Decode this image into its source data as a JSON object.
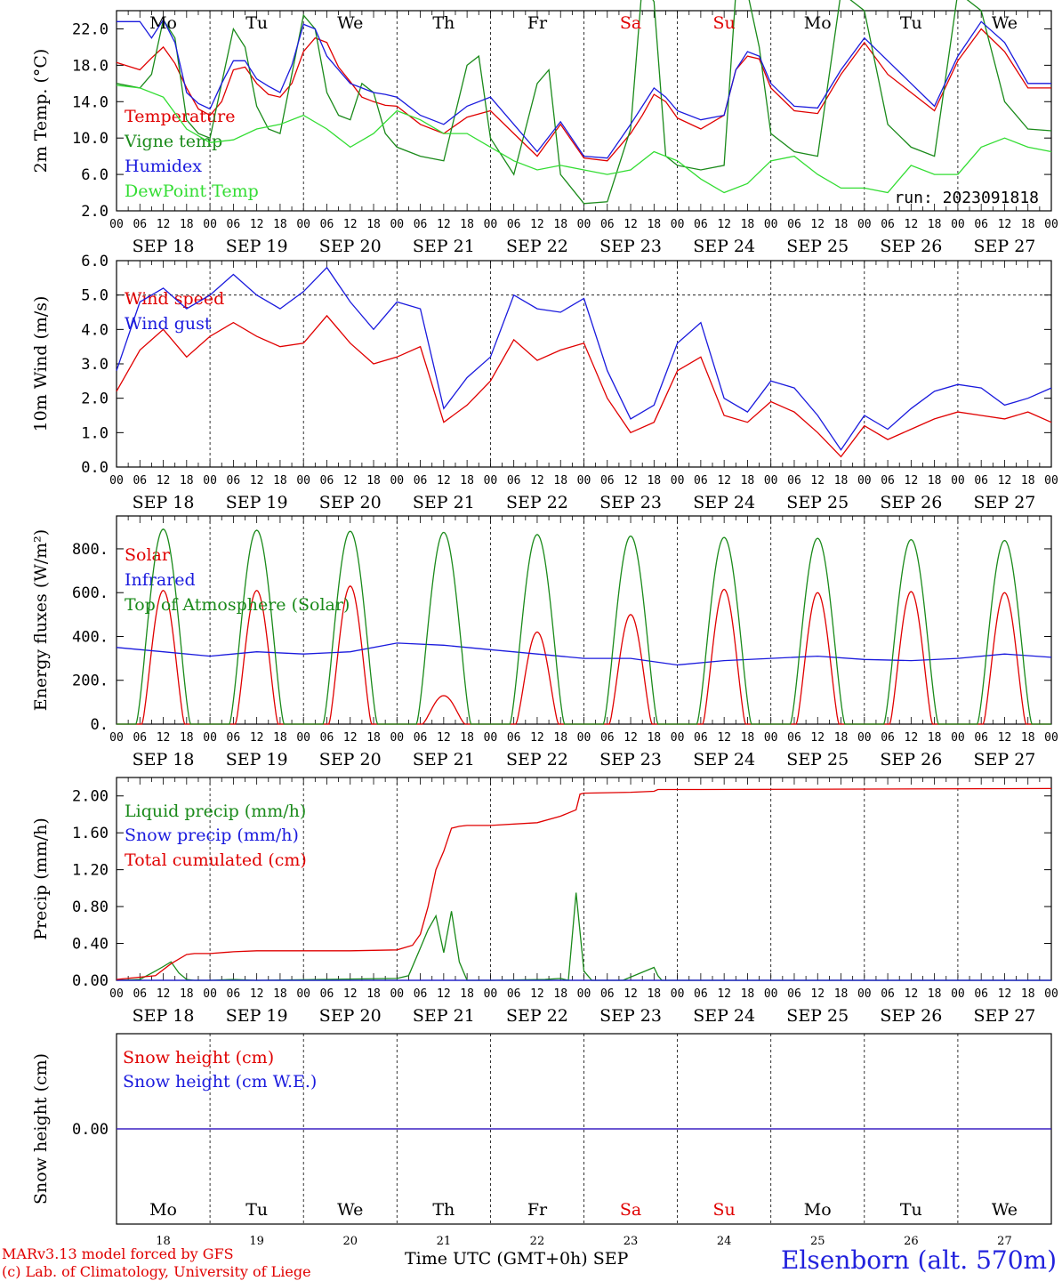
{
  "station_label": "Elsenborn (alt. 570m)",
  "credit_line_1": "MARv3.13 model forced by GFS",
  "credit_line_2": "(c) Lab. of Climatology, University of Liege",
  "time_axis_label": "Time UTC (GMT+0h)",
  "month_label": "SEP",
  "hour_ticks": [
    "00",
    "06",
    "12",
    "18"
  ],
  "date_labels": [
    "SEP 18",
    "SEP 19",
    "SEP 20",
    "SEP 21",
    "SEP 22",
    "SEP 23",
    "SEP 24",
    "SEP 25",
    "SEP 26",
    "SEP 27"
  ],
  "day_numbers": [
    "18",
    "19",
    "20",
    "21",
    "22",
    "23",
    "24",
    "25",
    "26",
    "27"
  ],
  "weekdays": [
    {
      "label": "Mo",
      "color": "#000000"
    },
    {
      "label": "Tu",
      "color": "#000000"
    },
    {
      "label": "We",
      "color": "#000000"
    },
    {
      "label": "Th",
      "color": "#000000"
    },
    {
      "label": "Fr",
      "color": "#000000"
    },
    {
      "label": "Sa",
      "color": "#e00000"
    },
    {
      "label": "Su",
      "color": "#e00000"
    },
    {
      "label": "Mo",
      "color": "#000000"
    },
    {
      "label": "Tu",
      "color": "#000000"
    },
    {
      "label": "We",
      "color": "#000000"
    }
  ],
  "colors": {
    "red": "#e00000",
    "green": "#1a8a1a",
    "blue": "#1a1add",
    "lightgreen": "#33dd33",
    "purple": "#8833aa"
  },
  "chart_data": [
    {
      "type": "line",
      "ylabel": "2m Temp. (°C)",
      "ylim": [
        2,
        24
      ],
      "yticks": [
        "22.0",
        "18.0",
        "14.0",
        "10.0",
        "6.0",
        "2.0"
      ],
      "ytick_values": [
        22,
        18,
        14,
        10,
        6,
        2
      ],
      "run_label": "run: 2023091818",
      "x_unit": "hours since 2023-09-18 00 UTC",
      "series": [
        {
          "name": "Temperature",
          "color_key": "red",
          "x": [
            0,
            6,
            9,
            12,
            15,
            18,
            21,
            24,
            27,
            30,
            33,
            36,
            39,
            42,
            45,
            48,
            51,
            54,
            57,
            60,
            63,
            66,
            69,
            72,
            78,
            84,
            90,
            96,
            102,
            108,
            114,
            120,
            126,
            132,
            135,
            138,
            141,
            144,
            150,
            156,
            159,
            162,
            165,
            168,
            174,
            180,
            186,
            192,
            198,
            204,
            210,
            216,
            222,
            228,
            234,
            240
          ],
          "y": [
            18.3,
            17.5,
            18.8,
            20,
            18.2,
            15.5,
            13.2,
            12.5,
            14,
            17.5,
            17.8,
            16,
            14.8,
            14.5,
            16,
            19.5,
            21,
            20.5,
            17.8,
            16.2,
            14.5,
            14,
            13.6,
            13.5,
            11.5,
            10.5,
            12.3,
            13,
            10.5,
            8,
            11.5,
            7.8,
            7.5,
            10.5,
            12.5,
            14.8,
            14,
            12.2,
            11,
            12.5,
            17.5,
            19,
            18.7,
            15.5,
            13,
            12.7,
            17,
            20.5,
            17,
            15,
            13,
            18.5,
            22,
            19.5,
            15.5,
            15.5
          ]
        },
        {
          "name": "Vigne temp",
          "color_key": "green",
          "x": [
            0,
            6,
            9,
            12,
            15,
            18,
            21,
            24,
            27,
            30,
            33,
            36,
            39,
            42,
            45,
            48,
            51,
            54,
            57,
            60,
            63,
            66,
            69,
            72,
            78,
            84,
            90,
            93,
            96,
            102,
            108,
            111,
            114,
            120,
            126,
            132,
            135,
            138,
            141,
            144,
            150,
            156,
            159,
            162,
            165,
            168,
            174,
            180,
            186,
            192,
            198,
            204,
            210,
            216,
            222,
            228,
            234,
            240
          ],
          "y": [
            16,
            15.5,
            17,
            23,
            21,
            12,
            10.5,
            10,
            16,
            22,
            20,
            13.5,
            11,
            10.5,
            17,
            23.5,
            22,
            15,
            12.5,
            12,
            16,
            15,
            10.5,
            9,
            8,
            7.5,
            18,
            19,
            10,
            6,
            16,
            17.5,
            6,
            2.8,
            3,
            11,
            27,
            25,
            8,
            7,
            6.5,
            7,
            26,
            26,
            20,
            10.5,
            8.5,
            8,
            26,
            24,
            11.5,
            9,
            8,
            26,
            24,
            14,
            11,
            10.8
          ]
        },
        {
          "name": "Humidex",
          "color_key": "blue",
          "x": [
            0,
            6,
            9,
            12,
            15,
            18,
            21,
            24,
            27,
            30,
            33,
            36,
            39,
            42,
            45,
            48,
            51,
            54,
            57,
            60,
            63,
            66,
            69,
            72,
            78,
            84,
            90,
            96,
            102,
            108,
            114,
            120,
            126,
            132,
            135,
            138,
            141,
            144,
            150,
            156,
            159,
            162,
            165,
            168,
            174,
            180,
            186,
            192,
            198,
            204,
            210,
            216,
            222,
            228,
            234,
            240
          ],
          "y": [
            22.8,
            22.8,
            21,
            23,
            20.5,
            15,
            13.8,
            13.2,
            16,
            18.5,
            18.5,
            16.5,
            15.7,
            15,
            18,
            22.5,
            22,
            19,
            17.5,
            16,
            15.5,
            15,
            14.8,
            14.5,
            12.5,
            11.5,
            13.5,
            14.5,
            11.5,
            8.5,
            11.8,
            8,
            7.8,
            11.5,
            13.5,
            15.5,
            14.5,
            13,
            12,
            12.5,
            17.5,
            19.5,
            19,
            16,
            13.5,
            13.3,
            17.5,
            21,
            18.5,
            16,
            13.5,
            19,
            22.8,
            20.5,
            16,
            16
          ]
        },
        {
          "name": "DewPoint Temp",
          "color_key": "lightgreen",
          "x": [
            0,
            6,
            12,
            18,
            24,
            30,
            36,
            42,
            48,
            54,
            60,
            66,
            72,
            78,
            84,
            90,
            96,
            102,
            108,
            114,
            120,
            126,
            132,
            138,
            144,
            150,
            156,
            162,
            168,
            174,
            180,
            186,
            192,
            198,
            204,
            210,
            216,
            222,
            228,
            234,
            240
          ],
          "y": [
            15.8,
            15.5,
            14.5,
            11,
            9.5,
            9.8,
            11,
            11.5,
            12.5,
            11,
            9,
            10.5,
            13,
            12,
            10.5,
            10.5,
            9,
            7.5,
            6.5,
            7,
            6.5,
            6,
            6.5,
            8.5,
            7.5,
            5.5,
            4,
            5,
            7.5,
            8,
            6,
            4.5,
            4.5,
            4,
            7,
            6,
            6,
            9,
            10,
            9,
            8.5
          ]
        }
      ]
    },
    {
      "type": "line",
      "ylabel": "10m Wind (m/s)",
      "ylim": [
        0,
        6
      ],
      "yticks": [
        "6.0",
        "5.0",
        "4.0",
        "3.0",
        "2.0",
        "1.0",
        "0.0"
      ],
      "ytick_values": [
        6,
        5,
        4,
        3,
        2,
        1,
        0
      ],
      "reference_line": 5,
      "series": [
        {
          "name": "Wind speed",
          "color_key": "red",
          "x": [
            0,
            6,
            12,
            18,
            24,
            30,
            36,
            42,
            48,
            54,
            60,
            66,
            72,
            78,
            84,
            90,
            96,
            102,
            108,
            114,
            120,
            126,
            132,
            138,
            144,
            150,
            156,
            162,
            168,
            174,
            180,
            186,
            192,
            198,
            204,
            210,
            216,
            222,
            228,
            234,
            240
          ],
          "y": [
            2.2,
            3.4,
            4,
            3.2,
            3.8,
            4.2,
            3.8,
            3.5,
            3.6,
            4.4,
            3.6,
            3,
            3.2,
            3.5,
            1.3,
            1.8,
            2.5,
            3.7,
            3.1,
            3.4,
            3.6,
            2,
            1,
            1.3,
            2.8,
            3.2,
            1.5,
            1.3,
            1.9,
            1.6,
            1,
            0.3,
            1.2,
            0.8,
            1.1,
            1.4,
            1.6,
            1.5,
            1.4,
            1.6,
            1.3
          ]
        },
        {
          "name": "Wind gust",
          "color_key": "blue",
          "x": [
            0,
            6,
            12,
            18,
            24,
            30,
            36,
            42,
            48,
            54,
            60,
            66,
            72,
            78,
            84,
            90,
            96,
            102,
            108,
            114,
            120,
            126,
            132,
            138,
            144,
            150,
            156,
            162,
            168,
            174,
            180,
            186,
            192,
            198,
            204,
            210,
            216,
            222,
            228,
            234,
            240
          ],
          "y": [
            2.8,
            4.8,
            5.2,
            4.6,
            5,
            5.6,
            5,
            4.6,
            5.1,
            5.8,
            4.8,
            4,
            4.8,
            4.6,
            1.7,
            2.6,
            3.2,
            5,
            4.6,
            4.5,
            4.9,
            2.8,
            1.4,
            1.8,
            3.6,
            4.2,
            2,
            1.6,
            2.5,
            2.3,
            1.5,
            0.5,
            1.5,
            1.1,
            1.7,
            2.2,
            2.4,
            2.3,
            1.8,
            2,
            2.3
          ]
        }
      ]
    },
    {
      "type": "line",
      "ylabel": "Energy fluxes (W/m²)",
      "ylim": [
        0,
        950
      ],
      "yticks": [
        "800.",
        "600.",
        "400.",
        "200.",
        "0."
      ],
      "ytick_values": [
        800,
        600,
        400,
        200,
        0
      ],
      "series": [
        {
          "name": "Solar",
          "color_key": "red",
          "daily_peaks": [
            610,
            610,
            630,
            130,
            420,
            500,
            615,
            600,
            605,
            600
          ]
        },
        {
          "name": "Infrared",
          "color_key": "blue",
          "x": [
            0,
            12,
            24,
            36,
            48,
            60,
            72,
            84,
            96,
            108,
            120,
            132,
            144,
            156,
            168,
            180,
            192,
            204,
            216,
            228,
            240
          ],
          "y": [
            350,
            330,
            310,
            330,
            320,
            330,
            370,
            360,
            340,
            320,
            300,
            300,
            270,
            290,
            300,
            310,
            295,
            290,
            300,
            320,
            305
          ]
        },
        {
          "name": "Top of Atmosphere (Solar)",
          "color_key": "green",
          "daily_peaks": [
            890,
            885,
            880,
            875,
            865,
            858,
            852,
            848,
            842,
            838
          ]
        }
      ]
    },
    {
      "type": "line",
      "ylabel": "Precip (mm/h)",
      "ylim": [
        0,
        2.2
      ],
      "yticks": [
        "2.00",
        "1.60",
        "1.20",
        "0.80",
        "0.40",
        "0.00"
      ],
      "ytick_values": [
        2,
        1.6,
        1.2,
        0.8,
        0.4,
        0
      ],
      "series": [
        {
          "name": "Liquid precip (mm/h)",
          "color_key": "green",
          "x": [
            0,
            6,
            10,
            12,
            14,
            16,
            18,
            20,
            24,
            30,
            36,
            72,
            75,
            78,
            80,
            82,
            84,
            86,
            88,
            90,
            96,
            110,
            114,
            116,
            118,
            120,
            122,
            130,
            138,
            139,
            140,
            240
          ],
          "y": [
            0,
            0.01,
            0.1,
            0.15,
            0.2,
            0.08,
            0.01,
            0,
            0,
            0.01,
            0,
            0.02,
            0.05,
            0.35,
            0.55,
            0.7,
            0.3,
            0.75,
            0.2,
            0,
            0,
            0.01,
            0.02,
            0,
            0.95,
            0.1,
            0,
            0,
            0.14,
            0.05,
            0,
            0
          ]
        },
        {
          "name": "Snow precip (mm/h)",
          "color_key": "blue",
          "x": [
            0,
            240
          ],
          "y": [
            0,
            0
          ]
        },
        {
          "name": "Total cumulated (cm)",
          "color_key": "red",
          "x": [
            0,
            10,
            14,
            18,
            20,
            24,
            30,
            36,
            48,
            60,
            72,
            76,
            78,
            80,
            82,
            84,
            86,
            88,
            90,
            96,
            108,
            114,
            118,
            119,
            120,
            132,
            138,
            139,
            150,
            240
          ],
          "y": [
            0.01,
            0.05,
            0.18,
            0.28,
            0.29,
            0.29,
            0.31,
            0.32,
            0.32,
            0.32,
            0.33,
            0.38,
            0.5,
            0.8,
            1.2,
            1.4,
            1.65,
            1.67,
            1.68,
            1.68,
            1.71,
            1.78,
            1.85,
            2.02,
            2.03,
            2.04,
            2.05,
            2.07,
            2.07,
            2.08
          ]
        }
      ]
    },
    {
      "type": "line",
      "ylabel": "Snow height (cm)",
      "ylim": [
        -1,
        1
      ],
      "yticks": [
        "0.00"
      ],
      "ytick_values": [
        0
      ],
      "series": [
        {
          "name": "Snow height (cm)",
          "color_key": "red",
          "x": [
            0,
            240
          ],
          "y": [
            0,
            0
          ]
        },
        {
          "name": "Snow height (cm W.E.)",
          "color_key": "blue",
          "x": [
            0,
            240
          ],
          "y": [
            0,
            0
          ]
        }
      ]
    }
  ]
}
